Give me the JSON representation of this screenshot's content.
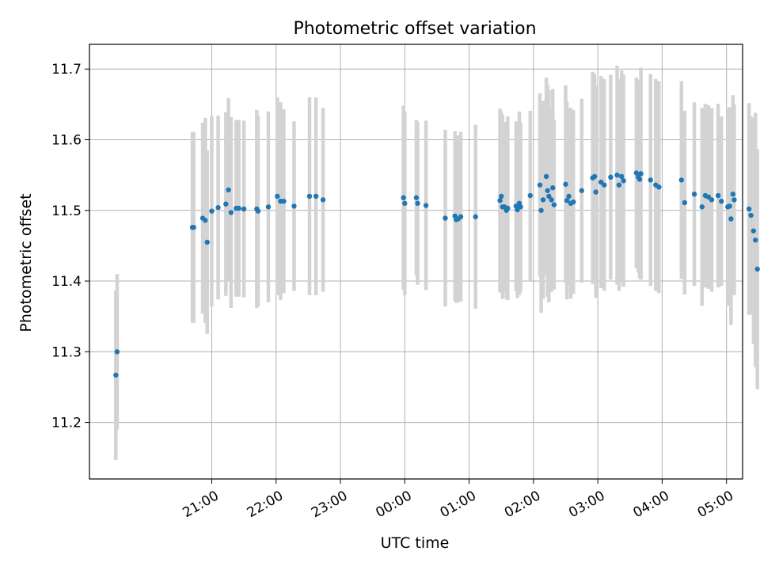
{
  "chart_data": {
    "type": "scatter",
    "title": "Photometric offset variation",
    "xlabel": "UTC time",
    "ylabel": "Photometric offset",
    "x_unit": "hours relative to 00:00 UTC",
    "xlim": [
      -4.9,
      5.25
    ],
    "ylim": [
      11.12,
      11.735
    ],
    "x_ticks": [
      -3,
      -2,
      -1,
      0,
      1,
      2,
      3,
      4,
      5
    ],
    "x_tick_labels": [
      "21:00",
      "22:00",
      "23:00",
      "00:00",
      "01:00",
      "02:00",
      "03:00",
      "04:00",
      "05:00"
    ],
    "y_ticks": [
      11.2,
      11.3,
      11.4,
      11.5,
      11.6,
      11.7
    ],
    "y_tick_labels": [
      "11.2",
      "11.3",
      "11.4",
      "11.5",
      "11.6",
      "11.7"
    ],
    "grid": true,
    "legend": "none",
    "colors": {
      "point": "#1f77b4",
      "errorbar": "#d3d3d3",
      "grid": "#b0b0b0"
    },
    "series": [
      {
        "x": [
          -4.49,
          -4.47,
          -3.3,
          -3.28,
          -3.14,
          -3.1,
          -3.07,
          -3.0,
          -2.9,
          -2.78,
          -2.74,
          -2.7,
          -2.62,
          -2.58,
          -2.5,
          -2.3,
          -2.28,
          -2.12,
          -1.98,
          -1.93,
          -1.88,
          -1.72,
          -1.48,
          -1.38,
          -1.27,
          -0.02,
          0.0,
          0.18,
          0.2,
          0.33,
          0.63,
          0.78,
          0.8,
          0.83,
          0.87,
          1.1,
          1.48,
          1.5,
          1.52,
          1.55,
          1.58,
          1.6,
          1.73,
          1.75,
          1.78,
          1.8,
          1.95,
          2.1,
          2.12,
          2.15,
          2.2,
          2.22,
          2.24,
          2.28,
          2.3,
          2.32,
          2.5,
          2.52,
          2.55,
          2.58,
          2.62,
          2.75,
          2.92,
          2.95,
          2.97,
          3.05,
          3.1,
          3.2,
          3.3,
          3.33,
          3.37,
          3.4,
          3.6,
          3.63,
          3.65,
          3.67,
          3.82,
          3.9,
          3.95,
          4.3,
          4.35,
          4.5,
          4.62,
          4.67,
          4.72,
          4.77,
          4.87,
          4.92,
          5.02,
          5.05,
          5.07,
          5.1,
          5.12,
          5.35,
          5.38,
          5.42,
          5.45,
          5.48
        ],
        "y": [
          11.267,
          11.3,
          11.476,
          11.476,
          11.489,
          11.486,
          11.455,
          11.499,
          11.504,
          11.509,
          11.529,
          11.497,
          11.503,
          11.503,
          11.502,
          11.502,
          11.499,
          11.505,
          11.52,
          11.513,
          11.513,
          11.506,
          11.52,
          11.52,
          11.515,
          11.518,
          11.51,
          11.518,
          11.51,
          11.507,
          11.489,
          11.492,
          11.487,
          11.488,
          11.491,
          11.491,
          11.514,
          11.52,
          11.505,
          11.505,
          11.5,
          11.503,
          11.506,
          11.501,
          11.51,
          11.505,
          11.521,
          11.536,
          11.5,
          11.515,
          11.548,
          11.528,
          11.52,
          11.515,
          11.532,
          11.508,
          11.537,
          11.514,
          11.52,
          11.51,
          11.512,
          11.528,
          11.546,
          11.548,
          11.526,
          11.54,
          11.536,
          11.547,
          11.55,
          11.536,
          11.548,
          11.542,
          11.553,
          11.547,
          11.544,
          11.552,
          11.543,
          11.536,
          11.533,
          11.543,
          11.511,
          11.523,
          11.505,
          11.521,
          11.519,
          11.515,
          11.521,
          11.513,
          11.505,
          11.506,
          11.488,
          11.523,
          11.515,
          11.502,
          11.493,
          11.471,
          11.458,
          11.417
        ],
        "yerr": [
          0.12,
          0.11,
          0.135,
          0.135,
          0.135,
          0.145,
          0.13,
          0.135,
          0.13,
          0.13,
          0.13,
          0.135,
          0.125,
          0.125,
          0.125,
          0.14,
          0.135,
          0.135,
          0.14,
          0.14,
          0.13,
          0.12,
          0.14,
          0.14,
          0.13,
          0.13,
          0.13,
          0.11,
          0.115,
          0.12,
          0.125,
          0.12,
          0.118,
          0.118,
          0.12,
          0.13,
          0.13,
          0.12,
          0.13,
          0.12,
          0.125,
          0.13,
          0.12,
          0.125,
          0.13,
          0.12,
          0.12,
          0.13,
          0.145,
          0.14,
          0.14,
          0.15,
          0.15,
          0.13,
          0.14,
          0.12,
          0.14,
          0.14,
          0.125,
          0.135,
          0.13,
          0.13,
          0.15,
          0.145,
          0.15,
          0.15,
          0.15,
          0.145,
          0.155,
          0.15,
          0.15,
          0.15,
          0.135,
          0.135,
          0.14,
          0.15,
          0.15,
          0.15,
          0.15,
          0.14,
          0.13,
          0.13,
          0.14,
          0.13,
          0.13,
          0.13,
          0.13,
          0.12,
          0.14,
          0.14,
          0.15,
          0.14,
          0.135,
          0.15,
          0.14,
          0.16,
          0.18,
          0.17
        ]
      }
    ]
  }
}
